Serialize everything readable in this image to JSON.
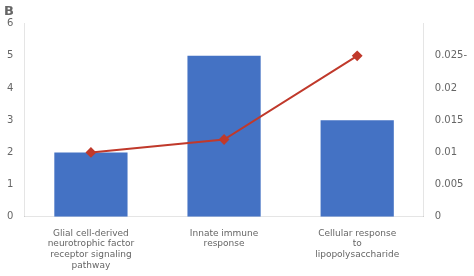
{
  "chart_data": {
    "type": "bar",
    "title": "B",
    "categories": [
      "Glial cell-derived\nneurotrophic factor\nreceptor signaling\npathway",
      "Innate immune\nresponse",
      "Cellular response\nto\nlipopolysaccharide"
    ],
    "series": [
      {
        "type": "bar",
        "color": "#4472C4",
        "values": [
          2,
          5,
          3
        ]
      },
      {
        "type": "line",
        "color": "#C0392B",
        "marker": "diamond",
        "axis": "y2",
        "values": [
          0.01,
          0.012,
          0.025
        ]
      }
    ],
    "ylim": [
      0,
      6
    ],
    "yticks": [
      0,
      1,
      2,
      3,
      4,
      5,
      6
    ],
    "y2lim": [
      0,
      0.03
    ],
    "y2ticks": [
      0,
      0.005,
      0.01,
      0.015,
      0.02,
      {
        "value": 0.025,
        "label": "0.025-"
      }
    ],
    "grid": false
  }
}
